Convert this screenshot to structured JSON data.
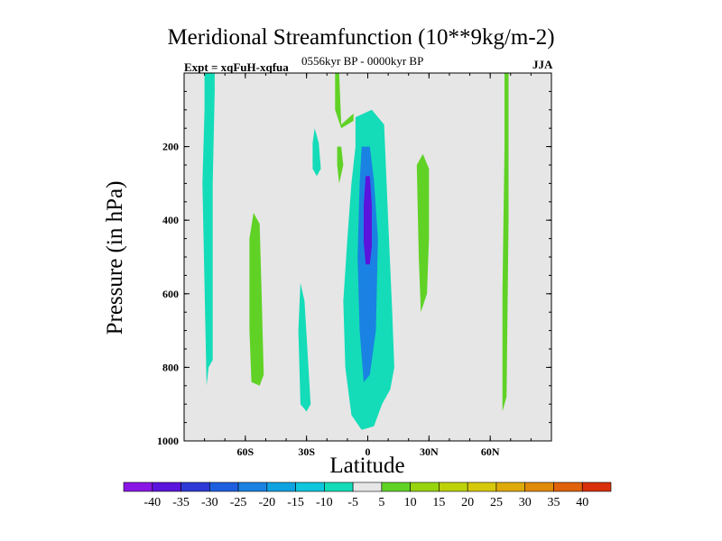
{
  "chart_data": {
    "type": "contour",
    "title": "Meridional Streamfunction (10**9kg/m-2)",
    "experiment_label": "Expt = xqFuH-xqfua",
    "period_label": "0556kyr BP - 0000kyr BP",
    "season_label": "JJA",
    "xlabel": "Latitude",
    "ylabel": "Pressure (in hPa)",
    "xlim": [
      -90,
      90
    ],
    "ylim": [
      1000,
      0
    ],
    "x_ticks": [
      {
        "value": -60,
        "label": "60S"
      },
      {
        "value": -30,
        "label": "30S"
      },
      {
        "value": 0,
        "label": "0"
      },
      {
        "value": 30,
        "label": "30N"
      },
      {
        "value": 60,
        "label": "60N"
      }
    ],
    "y_ticks": [
      {
        "value": 200,
        "label": "200"
      },
      {
        "value": 400,
        "label": "400"
      },
      {
        "value": 600,
        "label": "600"
      },
      {
        "value": 800,
        "label": "800"
      },
      {
        "value": 1000,
        "label": "1000"
      }
    ],
    "colorbar": {
      "labels": [
        "-40",
        "-35",
        "-30",
        "-25",
        "-20",
        "-15",
        "-10",
        "-5",
        "5",
        "10",
        "15",
        "20",
        "25",
        "30",
        "35",
        "40"
      ],
      "colors": [
        "#8a16e6",
        "#5a14dc",
        "#2d3ad6",
        "#1e5fe0",
        "#1a82e2",
        "#0fa2e0",
        "#0fc6dc",
        "#14dcb8",
        "#e6e6e6",
        "#60d226",
        "#98d40e",
        "#bed20a",
        "#d6c80a",
        "#deaa0a",
        "#e08a0a",
        "#e0620a",
        "#d8300a"
      ]
    },
    "contour_regions": [
      {
        "name": "sh-polar-column",
        "level": -5,
        "points": [
          [
            -80,
            0
          ],
          [
            -75,
            0
          ],
          [
            -75,
            50
          ],
          [
            -76,
            300
          ],
          [
            -76,
            780
          ],
          [
            -78,
            800
          ],
          [
            -79,
            850
          ],
          [
            -81,
            300
          ],
          [
            -80,
            100
          ]
        ]
      },
      {
        "name": "sh-positive-cell",
        "level": 5,
        "points": [
          [
            -56,
            380
          ],
          [
            -53,
            410
          ],
          [
            -52,
            600
          ],
          [
            -51,
            820
          ],
          [
            -53,
            850
          ],
          [
            -57,
            840
          ],
          [
            -58,
            700
          ],
          [
            -58,
            450
          ]
        ]
      },
      {
        "name": "sh-midlat-cell",
        "level": -5,
        "points": [
          [
            -33,
            570
          ],
          [
            -31,
            620
          ],
          [
            -28,
            900
          ],
          [
            -30,
            920
          ],
          [
            -33,
            900
          ],
          [
            -34,
            700
          ]
        ]
      },
      {
        "name": "sh-upper-blob",
        "level": -5,
        "points": [
          [
            -26,
            150
          ],
          [
            -24,
            190
          ],
          [
            -23,
            260
          ],
          [
            -25,
            280
          ],
          [
            -27,
            260
          ],
          [
            -27,
            190
          ]
        ]
      },
      {
        "name": "cross-eq-positive-upper",
        "level": 5,
        "points": [
          [
            -16,
            0
          ],
          [
            -14,
            0
          ],
          [
            -13,
            140
          ],
          [
            -11,
            130
          ],
          [
            -7,
            110
          ],
          [
            -7,
            130
          ],
          [
            -13,
            150
          ],
          [
            -16,
            100
          ]
        ]
      },
      {
        "name": "cross-eq-positive-lower",
        "level": 5,
        "points": [
          [
            -15,
            200
          ],
          [
            -13,
            200
          ],
          [
            -12,
            250
          ],
          [
            -14,
            300
          ],
          [
            -15,
            250
          ]
        ]
      },
      {
        "name": "tropical-cell-outer",
        "level": -5,
        "points": [
          [
            -6,
            120
          ],
          [
            2,
            100
          ],
          [
            8,
            140
          ],
          [
            10,
            400
          ],
          [
            12,
            650
          ],
          [
            13,
            800
          ],
          [
            11,
            860
          ],
          [
            7,
            900
          ],
          [
            3,
            960
          ],
          [
            -3,
            970
          ],
          [
            -8,
            930
          ],
          [
            -11,
            800
          ],
          [
            -12,
            620
          ],
          [
            -10,
            450
          ],
          [
            -8,
            300
          ],
          [
            -6,
            200
          ]
        ]
      },
      {
        "name": "tropical-cell-core",
        "level": -20,
        "points": [
          [
            -3,
            200
          ],
          [
            1,
            200
          ],
          [
            3,
            290
          ],
          [
            5,
            450
          ],
          [
            4,
            700
          ],
          [
            1,
            820
          ],
          [
            -2,
            840
          ],
          [
            -4,
            700
          ],
          [
            -5,
            500
          ],
          [
            -4,
            300
          ]
        ]
      },
      {
        "name": "tropical-cell-peak",
        "level": -35,
        "points": [
          [
            -1,
            280
          ],
          [
            1,
            280
          ],
          [
            2,
            360
          ],
          [
            2,
            470
          ],
          [
            1,
            520
          ],
          [
            -1,
            520
          ],
          [
            -2,
            460
          ],
          [
            -2,
            360
          ]
        ]
      },
      {
        "name": "nh-positive-cell",
        "level": 5,
        "points": [
          [
            24,
            250
          ],
          [
            27,
            220
          ],
          [
            30,
            260
          ],
          [
            30,
            450
          ],
          [
            29,
            600
          ],
          [
            26,
            650
          ],
          [
            25,
            500
          ]
        ]
      },
      {
        "name": "nh-polar-column",
        "level": 5,
        "points": [
          [
            67,
            0
          ],
          [
            69,
            0
          ],
          [
            69,
            400
          ],
          [
            68,
            880
          ],
          [
            66,
            920
          ],
          [
            66,
            600
          ],
          [
            67,
            200
          ]
        ]
      }
    ]
  }
}
